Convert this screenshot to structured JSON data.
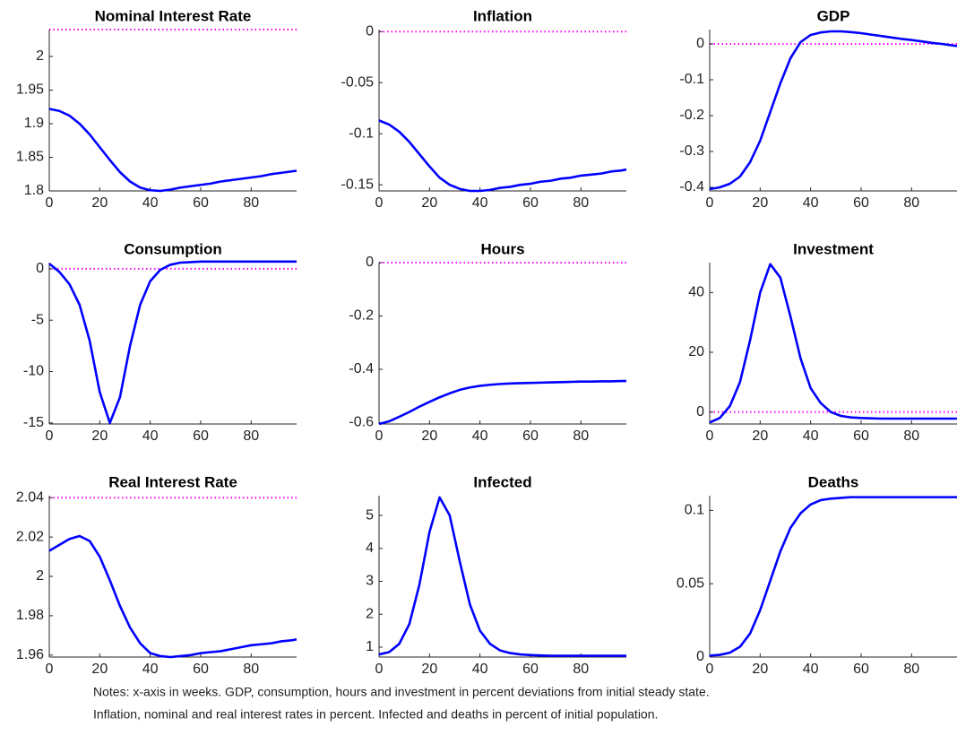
{
  "chart_data": [
    {
      "type": "line",
      "title": "Nominal Interest Rate",
      "x": [
        0,
        4,
        8,
        12,
        16,
        20,
        24,
        28,
        32,
        36,
        40,
        44,
        48,
        52,
        56,
        60,
        64,
        68,
        72,
        76,
        80,
        84,
        88,
        92,
        96,
        98
      ],
      "series": [
        {
          "color": "#0000ff",
          "values": [
            1.922,
            1.919,
            1.912,
            1.9,
            1.884,
            1.865,
            1.846,
            1.828,
            1.814,
            1.805,
            1.801,
            1.8,
            1.802,
            1.805,
            1.807,
            1.809,
            1.811,
            1.814,
            1.816,
            1.818,
            1.82,
            1.822,
            1.825,
            1.827,
            1.829,
            1.83
          ]
        }
      ],
      "hline": {
        "value": 2.04,
        "color": "#ff00ff",
        "style": "dotted"
      },
      "xlim": [
        0,
        98
      ],
      "xticks": [
        0,
        20,
        40,
        60,
        80
      ],
      "ylim": [
        1.8,
        2.04
      ],
      "yticks": [
        1.8,
        1.85,
        1.9,
        1.95,
        2
      ]
    },
    {
      "type": "line",
      "title": "Inflation",
      "x": [
        0,
        4,
        8,
        12,
        16,
        20,
        24,
        28,
        32,
        36,
        40,
        44,
        48,
        52,
        56,
        60,
        64,
        68,
        72,
        76,
        80,
        84,
        88,
        92,
        96,
        98
      ],
      "series": [
        {
          "color": "#0000ff",
          "values": [
            -0.087,
            -0.091,
            -0.098,
            -0.108,
            -0.12,
            -0.132,
            -0.143,
            -0.15,
            -0.154,
            -0.156,
            -0.156,
            -0.155,
            -0.153,
            -0.152,
            -0.15,
            -0.149,
            -0.147,
            -0.146,
            -0.144,
            -0.143,
            -0.141,
            -0.14,
            -0.139,
            -0.137,
            -0.136,
            -0.135
          ]
        }
      ],
      "hline": {
        "value": 0,
        "color": "#ff00ff",
        "style": "dotted"
      },
      "xlim": [
        0,
        98
      ],
      "xticks": [
        0,
        20,
        40,
        60,
        80
      ],
      "ylim": [
        -0.156,
        0.002
      ],
      "yticks": [
        -0.15,
        -0.1,
        -0.05,
        0
      ]
    },
    {
      "type": "line",
      "title": "GDP",
      "x": [
        0,
        4,
        8,
        12,
        16,
        20,
        24,
        28,
        32,
        36,
        40,
        44,
        48,
        52,
        56,
        60,
        64,
        68,
        72,
        76,
        80,
        84,
        88,
        92,
        96,
        98
      ],
      "series": [
        {
          "color": "#0000ff",
          "values": [
            -0.405,
            -0.4,
            -0.39,
            -0.37,
            -0.33,
            -0.27,
            -0.19,
            -0.11,
            -0.04,
            0.005,
            0.025,
            0.032,
            0.035,
            0.035,
            0.033,
            0.03,
            0.026,
            0.022,
            0.018,
            0.014,
            0.011,
            0.007,
            0.003,
            0,
            -0.004,
            -0.006
          ]
        }
      ],
      "hline": {
        "value": 0,
        "color": "#ff00ff",
        "style": "dotted"
      },
      "xlim": [
        0,
        98
      ],
      "xticks": [
        0,
        20,
        40,
        60,
        80
      ],
      "ylim": [
        -0.41,
        0.04
      ],
      "yticks": [
        -0.4,
        -0.3,
        -0.2,
        -0.1,
        0
      ]
    },
    {
      "type": "line",
      "title": "Consumption",
      "x": [
        0,
        4,
        8,
        12,
        16,
        20,
        24,
        28,
        32,
        36,
        40,
        44,
        48,
        52,
        56,
        60,
        64,
        68,
        72,
        76,
        80,
        84,
        88,
        92,
        96,
        98
      ],
      "series": [
        {
          "color": "#0000ff",
          "values": [
            0.5,
            -0.3,
            -1.5,
            -3.5,
            -7,
            -12,
            -15,
            -12.5,
            -7.5,
            -3.5,
            -1.2,
            -0.1,
            0.4,
            0.6,
            0.65,
            0.7,
            0.7,
            0.7,
            0.7,
            0.7,
            0.7,
            0.7,
            0.7,
            0.7,
            0.7,
            0.7
          ]
        }
      ],
      "hline": {
        "value": 0,
        "color": "#ff00ff",
        "style": "dotted"
      },
      "xlim": [
        0,
        98
      ],
      "xticks": [
        0,
        20,
        40,
        60,
        80
      ],
      "ylim": [
        -15.1,
        0.6
      ],
      "yticks": [
        -15,
        -10,
        -5,
        0
      ]
    },
    {
      "type": "line",
      "title": "Hours",
      "x": [
        0,
        4,
        8,
        12,
        16,
        20,
        24,
        28,
        32,
        36,
        40,
        44,
        48,
        52,
        56,
        60,
        64,
        68,
        72,
        76,
        80,
        84,
        88,
        92,
        96,
        98
      ],
      "series": [
        {
          "color": "#0000ff",
          "values": [
            -0.605,
            -0.595,
            -0.578,
            -0.56,
            -0.54,
            -0.522,
            -0.505,
            -0.49,
            -0.477,
            -0.468,
            -0.462,
            -0.458,
            -0.455,
            -0.453,
            -0.452,
            -0.451,
            -0.45,
            -0.449,
            -0.448,
            -0.447,
            -0.446,
            -0.446,
            -0.445,
            -0.445,
            -0.444,
            -0.444
          ]
        }
      ],
      "hline": {
        "value": 0,
        "color": "#ff00ff",
        "style": "dotted"
      },
      "xlim": [
        0,
        98
      ],
      "xticks": [
        0,
        20,
        40,
        60,
        80
      ],
      "ylim": [
        -0.605,
        0
      ],
      "yticks": [
        -0.6,
        -0.4,
        -0.2,
        0
      ]
    },
    {
      "type": "line",
      "title": "Investment",
      "x": [
        0,
        4,
        8,
        12,
        16,
        20,
        24,
        28,
        32,
        36,
        40,
        44,
        48,
        52,
        56,
        60,
        64,
        68,
        72,
        76,
        80,
        84,
        88,
        92,
        96,
        98
      ],
      "series": [
        {
          "color": "#0000ff",
          "values": [
            -3.5,
            -2,
            2,
            10,
            24,
            40,
            49.5,
            45,
            32,
            18,
            8,
            3,
            0,
            -1.3,
            -1.8,
            -2,
            -2.1,
            -2.2,
            -2.2,
            -2.2,
            -2.2,
            -2.2,
            -2.2,
            -2.2,
            -2.2,
            -2.2
          ]
        }
      ],
      "hline": {
        "value": 0,
        "color": "#ff00ff",
        "style": "dotted"
      },
      "xlim": [
        0,
        98
      ],
      "xticks": [
        0,
        20,
        40,
        60,
        80
      ],
      "ylim": [
        -4,
        50
      ],
      "yticks": [
        0,
        20,
        40
      ]
    },
    {
      "type": "line",
      "title": "Real Interest Rate",
      "x": [
        0,
        4,
        8,
        12,
        16,
        20,
        24,
        28,
        32,
        36,
        40,
        44,
        48,
        52,
        56,
        60,
        64,
        68,
        72,
        76,
        80,
        84,
        88,
        92,
        96,
        98
      ],
      "series": [
        {
          "color": "#0000ff",
          "values": [
            2.013,
            2.016,
            2.019,
            2.0205,
            2.018,
            2.01,
            1.998,
            1.985,
            1.974,
            1.966,
            1.961,
            1.9595,
            1.959,
            1.9595,
            1.96,
            1.961,
            1.9615,
            1.962,
            1.963,
            1.964,
            1.965,
            1.9655,
            1.966,
            1.967,
            1.9675,
            1.968
          ]
        }
      ],
      "hline": {
        "value": 2.04,
        "color": "#ff00ff",
        "style": "dotted"
      },
      "xlim": [
        0,
        98
      ],
      "xticks": [
        0,
        20,
        40,
        60,
        80
      ],
      "ylim": [
        1.959,
        2.041
      ],
      "yticks": [
        1.96,
        1.98,
        2,
        2.02,
        2.04
      ]
    },
    {
      "type": "line",
      "title": "Infected",
      "x": [
        0,
        4,
        8,
        12,
        16,
        20,
        24,
        28,
        32,
        36,
        40,
        44,
        48,
        52,
        56,
        60,
        64,
        68,
        72,
        76,
        80,
        84,
        88,
        92,
        96,
        98
      ],
      "series": [
        {
          "color": "#0000ff",
          "values": [
            0.78,
            0.85,
            1.1,
            1.7,
            2.9,
            4.5,
            5.55,
            5,
            3.6,
            2.3,
            1.5,
            1.1,
            0.9,
            0.82,
            0.78,
            0.76,
            0.75,
            0.74,
            0.74,
            0.74,
            0.74,
            0.74,
            0.74,
            0.74,
            0.74,
            0.74
          ]
        }
      ],
      "xlim": [
        0,
        98
      ],
      "xticks": [
        0,
        20,
        40,
        60,
        80
      ],
      "ylim": [
        0.7,
        5.6
      ],
      "yticks": [
        1,
        2,
        3,
        4,
        5
      ]
    },
    {
      "type": "line",
      "title": "Deaths",
      "x": [
        0,
        4,
        8,
        12,
        16,
        20,
        24,
        28,
        32,
        36,
        40,
        44,
        48,
        52,
        56,
        60,
        64,
        68,
        72,
        76,
        80,
        84,
        88,
        92,
        96,
        98
      ],
      "series": [
        {
          "color": "#0000ff",
          "values": [
            0.001,
            0.0015,
            0.003,
            0.007,
            0.016,
            0.032,
            0.052,
            0.072,
            0.088,
            0.098,
            0.104,
            0.107,
            0.108,
            0.1085,
            0.109,
            0.109,
            0.109,
            0.109,
            0.109,
            0.109,
            0.109,
            0.109,
            0.109,
            0.109,
            0.109,
            0.109
          ]
        }
      ],
      "xlim": [
        0,
        98
      ],
      "xticks": [
        0,
        20,
        40,
        60,
        80
      ],
      "ylim": [
        0,
        0.11
      ],
      "yticks": [
        0,
        0.05,
        0.1
      ]
    }
  ],
  "notes": [
    "Notes: x-axis in weeks. GDP, consumption, hours and investment in percent deviations from initial steady state.",
    "Inflation, nominal and real interest rates in percent. Infected and deaths in percent of initial population."
  ]
}
